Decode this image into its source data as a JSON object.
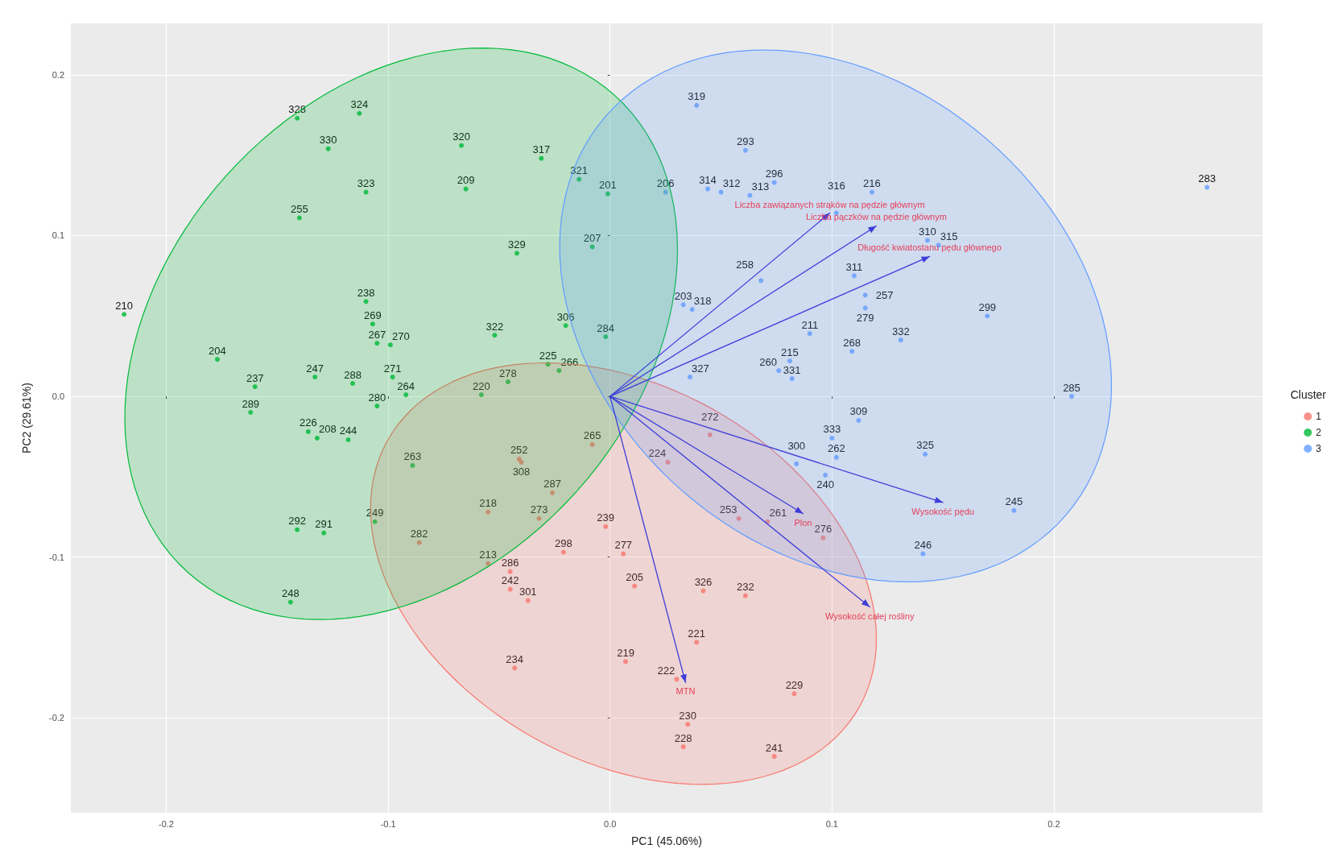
{
  "chart_data": {
    "type": "scatter",
    "xlabel": "PC1 (45.06%)",
    "ylabel": "PC2 (29.61%)",
    "legend_title": "Cluster",
    "legend": "right",
    "grid": true,
    "marker": "circle",
    "xlim": [
      -0.243,
      0.294
    ],
    "ylim": [
      -0.259,
      0.232
    ],
    "xticks": [
      {
        "value": -0.2,
        "label": "-0.2"
      },
      {
        "value": -0.1,
        "label": "-0.1"
      },
      {
        "value": 0,
        "label": "0.0"
      },
      {
        "value": 0.1,
        "label": "0.1"
      },
      {
        "value": 0.2,
        "label": "0.2"
      }
    ],
    "yticks": [
      {
        "value": -0.2,
        "label": "-0.2"
      },
      {
        "value": -0.1,
        "label": "-0.1"
      },
      {
        "value": 0,
        "label": "0.0"
      },
      {
        "value": 0.1,
        "label": "0.1"
      },
      {
        "value": 0.2,
        "label": "0.2"
      }
    ],
    "series": [
      {
        "name": "1",
        "color": "#f8766d",
        "x": [
          -0.041,
          -0.04,
          -0.008,
          -0.026,
          -0.055,
          -0.032,
          -0.086,
          -0.002,
          -0.021,
          0.006,
          -0.055,
          -0.045,
          -0.045,
          -0.037,
          0.011,
          0.026,
          0.045,
          0.058,
          0.071,
          0.096,
          0.042,
          0.061,
          0.039,
          0.007,
          -0.043,
          0.03,
          0.083,
          0.035,
          0.033,
          0.074
        ],
        "values": [
          -0.039,
          -0.041,
          -0.03,
          -0.06,
          -0.072,
          -0.076,
          -0.091,
          -0.081,
          -0.097,
          -0.098,
          -0.104,
          -0.109,
          -0.12,
          -0.127,
          -0.118,
          -0.041,
          -0.024,
          -0.076,
          -0.078,
          -0.088,
          -0.121,
          -0.124,
          -0.153,
          -0.165,
          -0.169,
          -0.176,
          -0.185,
          -0.204,
          -0.218,
          -0.224
        ]
      },
      {
        "name": "2",
        "color": "#00ba38",
        "x": [
          -0.141,
          -0.113,
          -0.127,
          -0.067,
          -0.031,
          -0.014,
          -0.001,
          -0.11,
          -0.065,
          -0.14,
          -0.008,
          -0.042,
          -0.219,
          -0.11,
          -0.107,
          -0.105,
          -0.099,
          -0.02,
          -0.052,
          -0.002,
          -0.177,
          -0.028,
          -0.023,
          -0.133,
          -0.116,
          -0.098,
          -0.16,
          -0.092,
          -0.046,
          -0.058,
          -0.105,
          -0.162,
          -0.136,
          -0.132,
          -0.118,
          -0.089,
          -0.141,
          -0.129,
          -0.106,
          -0.144
        ],
        "values": [
          0.173,
          0.176,
          0.154,
          0.156,
          0.148,
          0.135,
          0.126,
          0.127,
          0.129,
          0.111,
          0.093,
          0.089,
          0.051,
          0.059,
          0.045,
          0.033,
          0.032,
          0.044,
          0.038,
          0.037,
          0.023,
          0.02,
          0.016,
          0.012,
          0.008,
          0.012,
          0.006,
          0.001,
          0.009,
          0.001,
          -0.006,
          -0.01,
          -0.022,
          -0.026,
          -0.027,
          -0.043,
          -0.083,
          -0.085,
          -0.078,
          -0.128
        ]
      },
      {
        "name": "3",
        "color": "#619cff",
        "x": [
          0.039,
          0.061,
          0.074,
          0.044,
          0.05,
          0.063,
          0.025,
          0.118,
          0.269,
          0.102,
          0.143,
          0.148,
          0.11,
          0.068,
          0.115,
          0.115,
          0.033,
          0.037,
          0.17,
          0.09,
          0.131,
          0.109,
          0.081,
          0.076,
          0.082,
          0.036,
          0.208,
          0.112,
          0.1,
          0.102,
          0.142,
          0.084,
          0.097,
          0.182,
          0.141
        ],
        "values": [
          0.181,
          0.153,
          0.133,
          0.129,
          0.127,
          0.125,
          0.127,
          0.127,
          0.13,
          0.114,
          0.097,
          0.094,
          0.075,
          0.072,
          0.063,
          0.055,
          0.057,
          0.054,
          0.05,
          0.039,
          0.035,
          0.028,
          0.022,
          0.016,
          0.011,
          0.012,
          0.0,
          -0.015,
          -0.026,
          -0.038,
          -0.036,
          -0.042,
          -0.049,
          -0.071,
          -0.098
        ]
      }
    ],
    "annotations": [
      "Liczba zawiązanych strąków na pędzie głównym",
      "Liczba pączków na pędzie głównym",
      "Długość kwiatostanu pędu głównego",
      "Wysokość pędu",
      "Plon",
      "Wysokość całej rośliny",
      "MTN",
      {
        "text": "252",
        "x": -0.041,
        "y": -0.039
      },
      {
        "text": "308",
        "x": -0.04,
        "y": -0.041
      },
      {
        "text": "265",
        "x": -0.008,
        "y": -0.03
      },
      {
        "text": "287",
        "x": -0.026,
        "y": -0.06
      },
      {
        "text": "218",
        "x": -0.055,
        "y": -0.072
      },
      {
        "text": "273",
        "x": -0.032,
        "y": -0.076
      },
      {
        "text": "282",
        "x": -0.086,
        "y": -0.091
      },
      {
        "text": "239",
        "x": -0.002,
        "y": -0.081
      },
      {
        "text": "298",
        "x": -0.021,
        "y": -0.097
      },
      {
        "text": "277",
        "x": 0.006,
        "y": -0.098
      },
      {
        "text": "213",
        "x": -0.055,
        "y": -0.104
      },
      {
        "text": "286",
        "x": -0.045,
        "y": -0.109
      },
      {
        "text": "242",
        "x": -0.045,
        "y": -0.12
      },
      {
        "text": "301",
        "x": -0.037,
        "y": -0.127
      },
      {
        "text": "205",
        "x": 0.011,
        "y": -0.118
      },
      {
        "text": "224",
        "x": 0.026,
        "y": -0.041
      },
      {
        "text": "272",
        "x": 0.045,
        "y": -0.024
      },
      {
        "text": "253",
        "x": 0.058,
        "y": -0.076
      },
      {
        "text": "261",
        "x": 0.071,
        "y": -0.078
      },
      {
        "text": "276",
        "x": 0.096,
        "y": -0.088
      },
      {
        "text": "326",
        "x": 0.042,
        "y": -0.121
      },
      {
        "text": "232",
        "x": 0.061,
        "y": -0.124
      },
      {
        "text": "221",
        "x": 0.039,
        "y": -0.153
      },
      {
        "text": "219",
        "x": 0.007,
        "y": -0.165
      },
      {
        "text": "234",
        "x": -0.043,
        "y": -0.169
      },
      {
        "text": "222",
        "x": 0.03,
        "y": -0.176
      },
      {
        "text": "229",
        "x": 0.083,
        "y": -0.185
      },
      {
        "text": "230",
        "x": 0.035,
        "y": -0.204
      },
      {
        "text": "228",
        "x": 0.033,
        "y": -0.218
      },
      {
        "text": "241",
        "x": 0.074,
        "y": -0.224
      },
      {
        "text": "328",
        "x": -0.141,
        "y": 0.173
      },
      {
        "text": "324",
        "x": -0.113,
        "y": 0.176
      },
      {
        "text": "330",
        "x": -0.127,
        "y": 0.154
      },
      {
        "text": "320",
        "x": -0.067,
        "y": 0.156
      },
      {
        "text": "317",
        "x": -0.031,
        "y": 0.148
      },
      {
        "text": "321",
        "x": -0.014,
        "y": 0.135
      },
      {
        "text": "201",
        "x": -0.001,
        "y": 0.126
      },
      {
        "text": "323",
        "x": -0.11,
        "y": 0.127
      },
      {
        "text": "209",
        "x": -0.065,
        "y": 0.129
      },
      {
        "text": "255",
        "x": -0.14,
        "y": 0.111
      },
      {
        "text": "207",
        "x": -0.008,
        "y": 0.093
      },
      {
        "text": "329",
        "x": -0.042,
        "y": 0.089
      },
      {
        "text": "210",
        "x": -0.219,
        "y": 0.051
      },
      {
        "text": "238",
        "x": -0.11,
        "y": 0.059
      },
      {
        "text": "269",
        "x": -0.107,
        "y": 0.045
      },
      {
        "text": "267",
        "x": -0.105,
        "y": 0.033
      },
      {
        "text": "270",
        "x": -0.099,
        "y": 0.032
      },
      {
        "text": "306",
        "x": -0.02,
        "y": 0.044
      },
      {
        "text": "322",
        "x": -0.052,
        "y": 0.038
      },
      {
        "text": "284",
        "x": -0.002,
        "y": 0.037
      },
      {
        "text": "204",
        "x": -0.177,
        "y": 0.023
      },
      {
        "text": "225",
        "x": -0.028,
        "y": 0.02
      },
      {
        "text": "266",
        "x": -0.023,
        "y": 0.016
      },
      {
        "text": "247",
        "x": -0.133,
        "y": 0.012
      },
      {
        "text": "288",
        "x": -0.116,
        "y": 0.008
      },
      {
        "text": "271",
        "x": -0.098,
        "y": 0.012
      },
      {
        "text": "237",
        "x": -0.16,
        "y": 0.006
      },
      {
        "text": "264",
        "x": -0.092,
        "y": 0.001
      },
      {
        "text": "278",
        "x": -0.046,
        "y": 0.009
      },
      {
        "text": "220",
        "x": -0.058,
        "y": 0.001
      },
      {
        "text": "280",
        "x": -0.105,
        "y": -0.006
      },
      {
        "text": "289",
        "x": -0.162,
        "y": -0.01
      },
      {
        "text": "226",
        "x": -0.136,
        "y": -0.022
      },
      {
        "text": "208",
        "x": -0.132,
        "y": -0.026
      },
      {
        "text": "244",
        "x": -0.118,
        "y": -0.027
      },
      {
        "text": "263",
        "x": -0.089,
        "y": -0.043
      },
      {
        "text": "292",
        "x": -0.141,
        "y": -0.083
      },
      {
        "text": "291",
        "x": -0.129,
        "y": -0.085
      },
      {
        "text": "249",
        "x": -0.106,
        "y": -0.078
      },
      {
        "text": "248",
        "x": -0.144,
        "y": -0.128
      },
      {
        "text": "319",
        "x": 0.039,
        "y": 0.181
      },
      {
        "text": "293",
        "x": 0.061,
        "y": 0.153
      },
      {
        "text": "296",
        "x": 0.074,
        "y": 0.133
      },
      {
        "text": "314",
        "x": 0.044,
        "y": 0.129
      },
      {
        "text": "312",
        "x": 0.05,
        "y": 0.127
      },
      {
        "text": "313",
        "x": 0.063,
        "y": 0.125
      },
      {
        "text": "206",
        "x": 0.025,
        "y": 0.127
      },
      {
        "text": "216",
        "x": 0.118,
        "y": 0.127
      },
      {
        "text": "283",
        "x": 0.269,
        "y": 0.13
      },
      {
        "text": "316",
        "x": 0.102,
        "y": 0.114
      },
      {
        "text": "310",
        "x": 0.143,
        "y": 0.097
      },
      {
        "text": "315",
        "x": 0.148,
        "y": 0.094
      },
      {
        "text": "311",
        "x": 0.11,
        "y": 0.075
      },
      {
        "text": "258",
        "x": 0.068,
        "y": 0.072
      },
      {
        "text": "257",
        "x": 0.115,
        "y": 0.063
      },
      {
        "text": "279",
        "x": 0.115,
        "y": 0.055
      },
      {
        "text": "203",
        "x": 0.033,
        "y": 0.057
      },
      {
        "text": "318",
        "x": 0.037,
        "y": 0.054
      },
      {
        "text": "299",
        "x": 0.17,
        "y": 0.05
      },
      {
        "text": "211",
        "x": 0.09,
        "y": 0.039
      },
      {
        "text": "332",
        "x": 0.131,
        "y": 0.035
      },
      {
        "text": "268",
        "x": 0.109,
        "y": 0.028
      },
      {
        "text": "215",
        "x": 0.081,
        "y": 0.022
      },
      {
        "text": "260",
        "x": 0.076,
        "y": 0.016
      },
      {
        "text": "331",
        "x": 0.082,
        "y": 0.011
      },
      {
        "text": "327",
        "x": 0.036,
        "y": 0.012
      },
      {
        "text": "285",
        "x": 0.208,
        "y": 0.0
      },
      {
        "text": "309",
        "x": 0.112,
        "y": -0.015
      },
      {
        "text": "333",
        "x": 0.1,
        "y": -0.026
      },
      {
        "text": "262",
        "x": 0.102,
        "y": -0.038
      },
      {
        "text": "325",
        "x": 0.142,
        "y": -0.036
      },
      {
        "text": "300",
        "x": 0.084,
        "y": -0.042
      },
      {
        "text": "240",
        "x": 0.097,
        "y": -0.049
      },
      {
        "text": "245",
        "x": 0.182,
        "y": -0.071
      },
      {
        "text": "246",
        "x": 0.141,
        "y": -0.098
      }
    ]
  }
}
